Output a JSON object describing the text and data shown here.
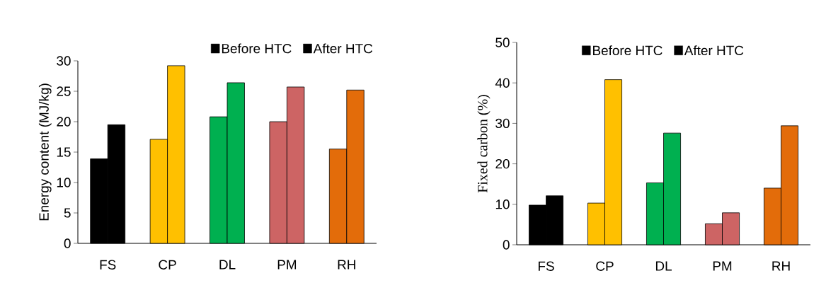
{
  "chart_data": [
    {
      "type": "bar",
      "ylabel": "Energy content (MJ/kg)",
      "categories": [
        "FS",
        "CP",
        "DL",
        "PM",
        "RH"
      ],
      "ylim": [
        0,
        30
      ],
      "yticks": [
        0,
        5,
        10,
        15,
        20,
        25,
        30
      ],
      "legend": "top right",
      "series": [
        {
          "name": "Before HTC",
          "color": "#000000",
          "colors": [
            "#000000",
            "#ffc000",
            "#00b050",
            "#cd6464",
            "#e36c0a"
          ],
          "values": [
            13.9,
            17.1,
            20.8,
            20.0,
            15.5
          ]
        },
        {
          "name": "After HTC",
          "color": "#000000",
          "colors": [
            "#000000",
            "#ffc000",
            "#00b050",
            "#cd6464",
            "#e36c0a"
          ],
          "values": [
            19.5,
            29.2,
            26.4,
            25.7,
            25.2
          ]
        }
      ]
    },
    {
      "type": "bar",
      "ylabel": "Fixed carbon (%)",
      "categories": [
        "FS",
        "CP",
        "DL",
        "PM",
        "RH"
      ],
      "ylim": [
        0,
        50
      ],
      "yticks": [
        0,
        10,
        20,
        30,
        40,
        50
      ],
      "legend": "top",
      "series": [
        {
          "name": "Before HTC",
          "color": "#000000",
          "colors": [
            "#000000",
            "#ffc000",
            "#00b050",
            "#cd6464",
            "#e36c0a"
          ],
          "values": [
            9.8,
            10.3,
            15.3,
            5.2,
            14.0
          ]
        },
        {
          "name": "After HTC",
          "color": "#000000",
          "colors": [
            "#000000",
            "#ffc000",
            "#00b050",
            "#cd6464",
            "#e36c0a"
          ],
          "values": [
            12.1,
            40.8,
            27.6,
            7.9,
            29.4
          ]
        }
      ]
    }
  ]
}
